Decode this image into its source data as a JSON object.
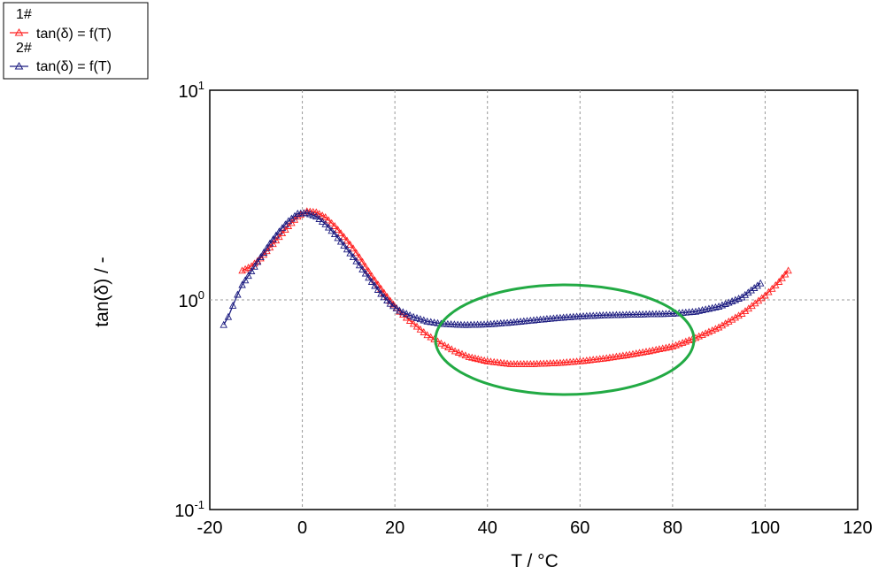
{
  "chart_data": {
    "type": "line",
    "xlabel": "T / °C",
    "ylabel": "tan(δ) / -",
    "xlim": [
      -20,
      120
    ],
    "ylim": [
      0.1,
      10
    ],
    "yscale": "log",
    "grid": true,
    "x_ticks": [
      {
        "value": -20,
        "label": "-20"
      },
      {
        "value": 0,
        "label": "0"
      },
      {
        "value": 20,
        "label": "20"
      },
      {
        "value": 40,
        "label": "40"
      },
      {
        "value": 60,
        "label": "60"
      },
      {
        "value": 80,
        "label": "80"
      },
      {
        "value": 100,
        "label": "100"
      },
      {
        "value": 120,
        "label": "120"
      }
    ],
    "y_ticks": [
      {
        "value": 0.1,
        "base": "10",
        "exp": "-1"
      },
      {
        "value": 1,
        "base": "10",
        "exp": "0"
      },
      {
        "value": 10,
        "base": "10",
        "exp": "1"
      }
    ],
    "legend_position": "top-left",
    "series": [
      {
        "name": "1#",
        "label": "tan(δ) = f(T)",
        "color": "#ff2020",
        "marker": "triangle",
        "points": [
          [
            -13,
            1.38
          ],
          [
            -11,
            1.45
          ],
          [
            -9,
            1.58
          ],
          [
            -7,
            1.78
          ],
          [
            -5,
            2.0
          ],
          [
            -3,
            2.25
          ],
          [
            -1,
            2.5
          ],
          [
            1,
            2.65
          ],
          [
            3,
            2.62
          ],
          [
            5,
            2.48
          ],
          [
            7,
            2.25
          ],
          [
            9,
            2.0
          ],
          [
            11,
            1.76
          ],
          [
            13,
            1.52
          ],
          [
            15,
            1.3
          ],
          [
            17,
            1.13
          ],
          [
            19,
            0.99
          ],
          [
            21,
            0.88
          ],
          [
            24,
            0.77
          ],
          [
            27,
            0.68
          ],
          [
            30,
            0.62
          ],
          [
            33,
            0.57
          ],
          [
            36,
            0.535
          ],
          [
            40,
            0.51
          ],
          [
            45,
            0.495
          ],
          [
            50,
            0.495
          ],
          [
            55,
            0.5
          ],
          [
            60,
            0.51
          ],
          [
            65,
            0.525
          ],
          [
            70,
            0.545
          ],
          [
            75,
            0.57
          ],
          [
            80,
            0.6
          ],
          [
            85,
            0.66
          ],
          [
            90,
            0.74
          ],
          [
            95,
            0.86
          ],
          [
            100,
            1.05
          ],
          [
            103,
            1.22
          ],
          [
            105,
            1.38
          ]
        ]
      },
      {
        "name": "2#",
        "label": "tan(δ) = f(T)",
        "color": "#1c1c80",
        "marker": "triangle",
        "points": [
          [
            -17,
            0.76
          ],
          [
            -16,
            0.83
          ],
          [
            -15,
            0.94
          ],
          [
            -14,
            1.06
          ],
          [
            -13,
            1.18
          ],
          [
            -11,
            1.37
          ],
          [
            -9,
            1.6
          ],
          [
            -7,
            1.86
          ],
          [
            -5,
            2.12
          ],
          [
            -3,
            2.38
          ],
          [
            -1,
            2.58
          ],
          [
            1,
            2.6
          ],
          [
            3,
            2.5
          ],
          [
            5,
            2.3
          ],
          [
            7,
            2.06
          ],
          [
            9,
            1.82
          ],
          [
            11,
            1.6
          ],
          [
            13,
            1.4
          ],
          [
            15,
            1.22
          ],
          [
            17,
            1.07
          ],
          [
            19,
            0.96
          ],
          [
            21,
            0.89
          ],
          [
            24,
            0.83
          ],
          [
            27,
            0.79
          ],
          [
            30,
            0.77
          ],
          [
            35,
            0.76
          ],
          [
            40,
            0.765
          ],
          [
            45,
            0.78
          ],
          [
            50,
            0.8
          ],
          [
            55,
            0.82
          ],
          [
            60,
            0.835
          ],
          [
            65,
            0.845
          ],
          [
            70,
            0.85
          ],
          [
            75,
            0.855
          ],
          [
            80,
            0.86
          ],
          [
            85,
            0.88
          ],
          [
            90,
            0.93
          ],
          [
            95,
            1.03
          ],
          [
            99,
            1.2
          ]
        ]
      }
    ]
  }
}
